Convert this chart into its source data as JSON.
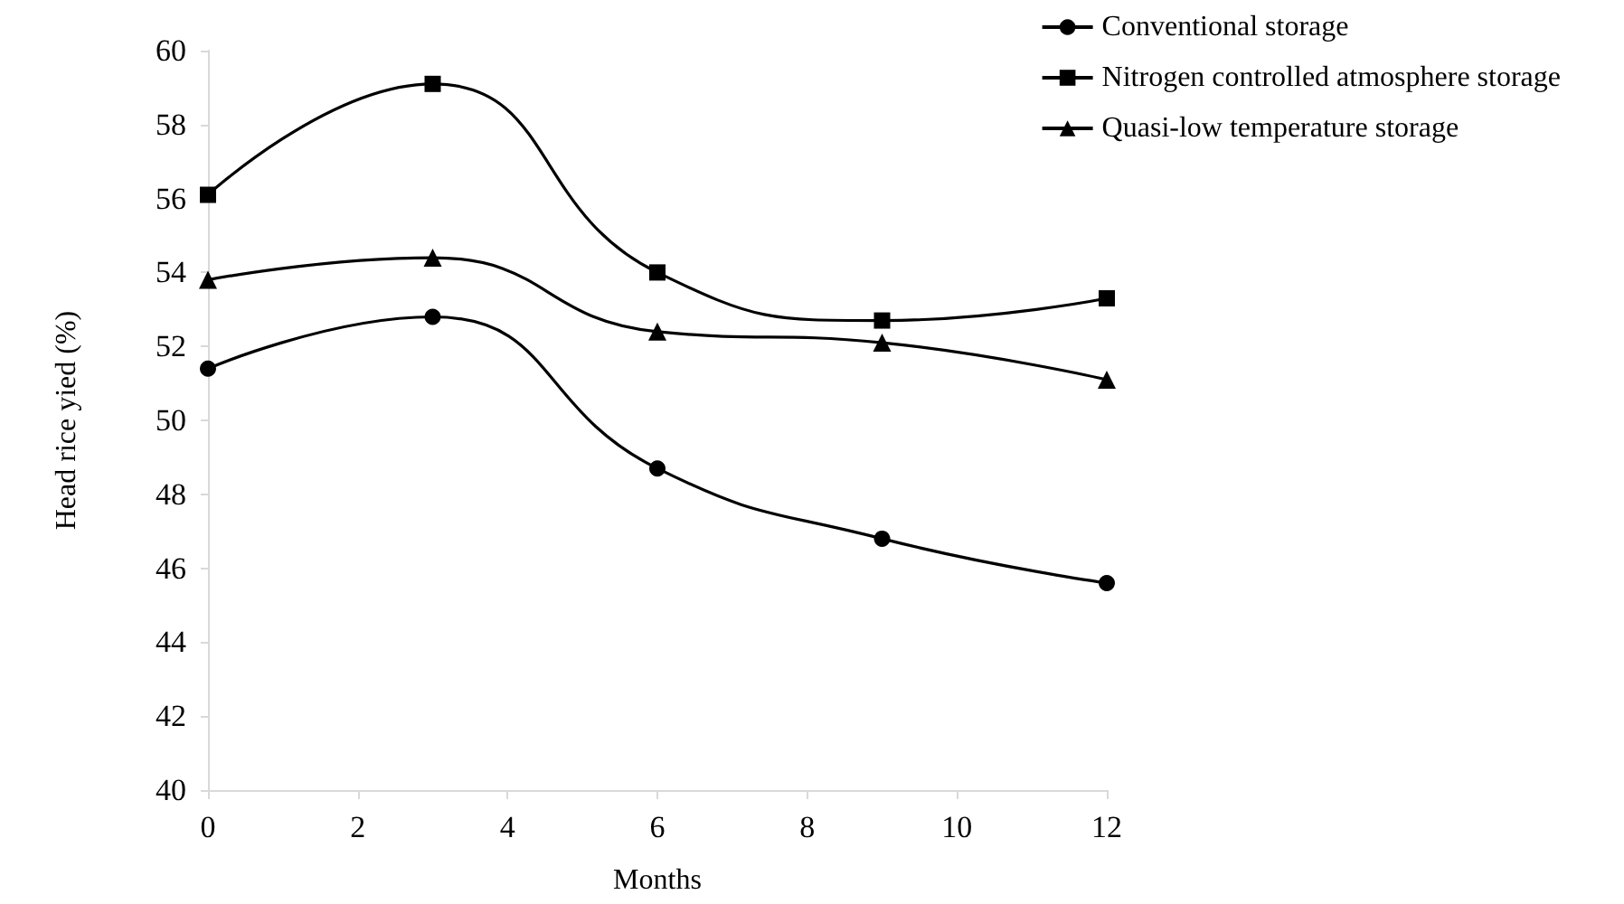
{
  "chart_data": {
    "type": "line",
    "xlabel": "Months",
    "ylabel": "Head rice yied (%)",
    "x": [
      0,
      3,
      6,
      9,
      12
    ],
    "series": [
      {
        "name": "Conventional storage",
        "color": "#000000",
        "marker": "circle",
        "values": [
          51.4,
          52.8,
          48.7,
          46.8,
          45.6
        ]
      },
      {
        "name": "Nitrogen controlled atmosphere storage",
        "color": "#000000",
        "marker": "square",
        "values": [
          56.1,
          59.1,
          54.0,
          52.7,
          53.3
        ]
      },
      {
        "name": "Quasi-low temperature storage",
        "color": "#000000",
        "marker": "triangle",
        "values": [
          53.8,
          54.4,
          52.4,
          52.1,
          51.1
        ]
      }
    ],
    "xlim": [
      0,
      12
    ],
    "xticks": [
      0,
      2,
      4,
      6,
      8,
      10,
      12
    ],
    "ylim": [
      40,
      60
    ],
    "yticks": [
      40,
      42,
      44,
      46,
      48,
      50,
      52,
      54,
      56,
      58,
      60
    ],
    "grid": false,
    "legend": "top right",
    "line_style": "solid"
  }
}
